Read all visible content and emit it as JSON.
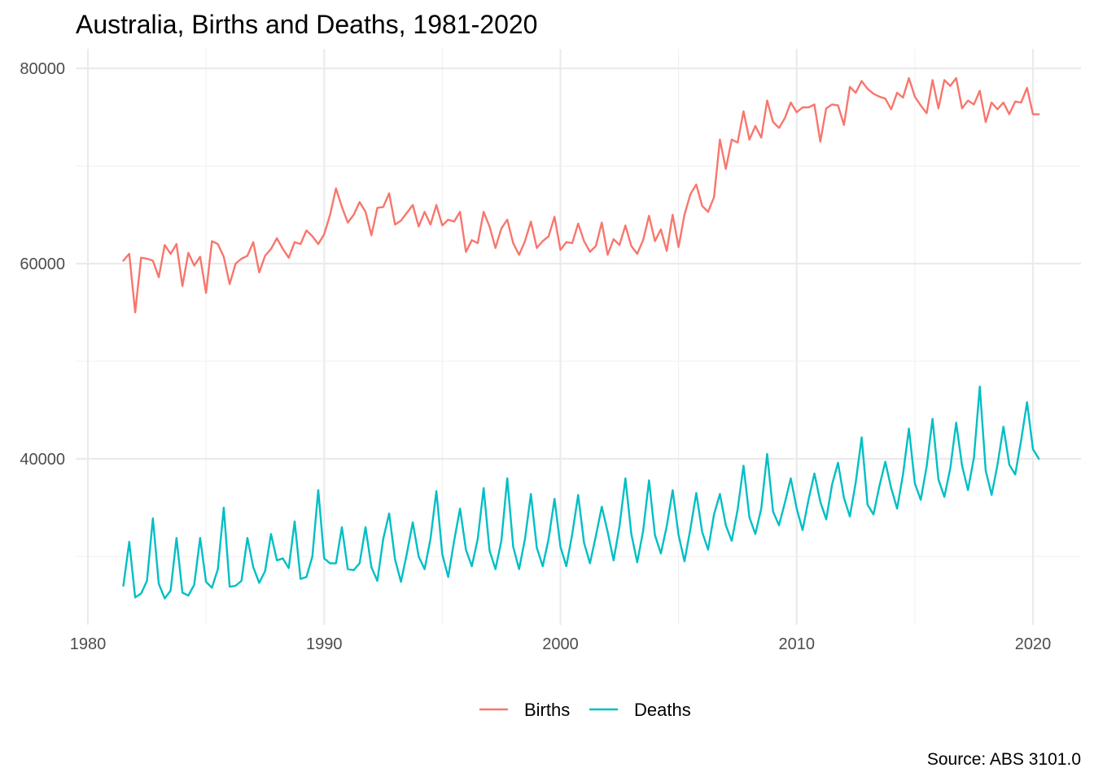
{
  "chart_data": {
    "type": "line",
    "title": "Australia, Births and Deaths, 1981-2020",
    "xlabel": "",
    "ylabel": "",
    "caption": "Source: ABS 3101.0",
    "xlim": [
      1980,
      2022
    ],
    "ylim": [
      22000,
      82000
    ],
    "x_ticks": [
      1980,
      1990,
      2000,
      2010,
      2020
    ],
    "y_ticks": [
      40000,
      60000,
      80000
    ],
    "grid": true,
    "legend": "bottom",
    "colors": {
      "Births": "#F8766D",
      "Deaths": "#00BFC4"
    },
    "x_start": 1981.5,
    "x_step": 0.25,
    "series": [
      {
        "name": "Births",
        "values": [
          60300,
          61000,
          55000,
          60600,
          60500,
          60300,
          58600,
          61900,
          61000,
          62000,
          57700,
          61100,
          59800,
          60700,
          57000,
          62300,
          62000,
          60700,
          57900,
          60000,
          60500,
          60800,
          62200,
          59100,
          60800,
          61500,
          62600,
          61500,
          60600,
          62200,
          62000,
          63400,
          62800,
          62000,
          63000,
          65000,
          67700,
          65800,
          64200,
          65000,
          66300,
          65300,
          62900,
          65700,
          65800,
          67200,
          64000,
          64400,
          65200,
          66000,
          63800,
          65300,
          64000,
          66000,
          63900,
          64500,
          64300,
          65300,
          61200,
          62400,
          62100,
          65300,
          63800,
          61600,
          63600,
          64500,
          62100,
          60900,
          62300,
          64300,
          61600,
          62300,
          62800,
          64800,
          61400,
          62200,
          62100,
          64100,
          62300,
          61200,
          61800,
          64200,
          60900,
          62500,
          61900,
          63900,
          61800,
          61000,
          62400,
          64900,
          62300,
          63500,
          61300,
          65000,
          61700,
          65000,
          67100,
          68100,
          65900,
          65300,
          66800,
          72700,
          69700,
          72700,
          72400,
          75600,
          72700,
          74100,
          72900,
          76700,
          74500,
          73900,
          74900,
          76500,
          75500,
          76000,
          76000,
          76300,
          72500,
          75900,
          76300,
          76200,
          74200,
          78100,
          77500,
          78700,
          77900,
          77400,
          77100,
          76900,
          75800,
          77500,
          77000,
          79000,
          77100,
          76200,
          75400,
          78800,
          75900,
          78800,
          78200,
          79000,
          75900,
          76700,
          76300,
          77700,
          74500,
          76500,
          75800,
          76500,
          75300,
          76600,
          76500,
          78000,
          75300,
          75300
        ],
        "color": "#F8766D"
      },
      {
        "name": "Deaths",
        "values": [
          27000,
          31500,
          25800,
          26200,
          27500,
          33900,
          27200,
          25700,
          26500,
          31900,
          26300,
          26000,
          27100,
          31900,
          27400,
          26800,
          28700,
          35000,
          26900,
          27000,
          27500,
          31900,
          28900,
          27300,
          28500,
          32300,
          29600,
          29800,
          28800,
          33600,
          27700,
          27900,
          30000,
          36800,
          29800,
          29300,
          29300,
          33000,
          28700,
          28600,
          29300,
          33000,
          28900,
          27500,
          31800,
          34400,
          29700,
          27400,
          30300,
          33500,
          30000,
          28700,
          31800,
          36700,
          30200,
          27900,
          31600,
          34900,
          30700,
          29000,
          31800,
          37000,
          30600,
          28700,
          31600,
          38000,
          31000,
          28700,
          31800,
          36400,
          30900,
          29000,
          31800,
          35900,
          31000,
          29000,
          32300,
          36300,
          31400,
          29300,
          32100,
          35100,
          32500,
          29600,
          33100,
          38000,
          32300,
          29400,
          32600,
          37800,
          32200,
          30300,
          33100,
          36800,
          32200,
          29500,
          32800,
          36500,
          32500,
          30700,
          34300,
          36400,
          33200,
          31600,
          34800,
          39300,
          34000,
          32300,
          34900,
          40500,
          34600,
          33200,
          35500,
          38000,
          34900,
          32700,
          35800,
          38500,
          35600,
          33800,
          37400,
          39600,
          36000,
          34100,
          37600,
          42200,
          35300,
          34300,
          37200,
          39700,
          37000,
          34900,
          38400,
          43100,
          37500,
          35800,
          39200,
          44100,
          37900,
          36100,
          39000,
          43700,
          39300,
          36800,
          40100,
          47400,
          38800,
          36300,
          39400,
          43300,
          39400,
          38400,
          41900,
          45800,
          41000,
          40000
        ],
        "color": "#00BFC4"
      }
    ]
  }
}
